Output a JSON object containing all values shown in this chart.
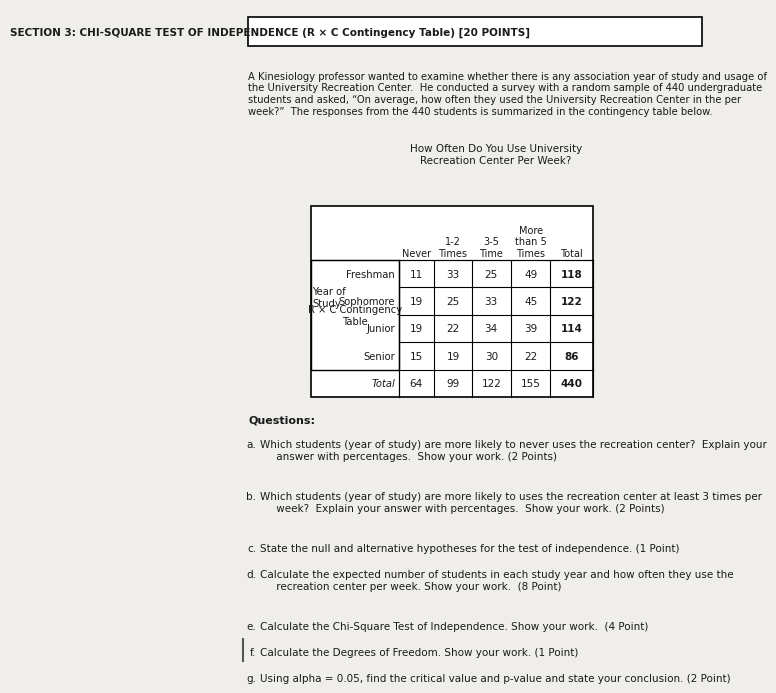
{
  "title": "SECTION 3: CHI-SQUARE TEST OF INDEPENDENCE (R × C Contingency Table) [20 POINTS]",
  "intro_text": "A Kinesiology professor wanted to examine whether there is any association year of study and usage of\nthe University Recreation Center.  He conducted a survey with a random sample of 440 undergraduate\nstudents and asked, “On average, how often they used the University Recreation Center in the per\nweek?”  The responses from the 440 students is summarized in the contingency table below.",
  "table_header_top": "How Often Do You Use University\nRecreation Center Per Week?",
  "table_col_label": "R × C Contingency\nTable",
  "col_headers": [
    "Never",
    "1-2\nTimes",
    "3-5\nTime",
    "More\nthan 5\nTimes",
    "Total"
  ],
  "row_label_group": "Year of\nStudy",
  "row_labels": [
    "Freshman",
    "Sophomore",
    "Junior",
    "Senior",
    "Total"
  ],
  "data": [
    [
      11,
      33,
      25,
      49,
      118
    ],
    [
      19,
      25,
      33,
      45,
      122
    ],
    [
      19,
      22,
      34,
      39,
      114
    ],
    [
      15,
      19,
      30,
      22,
      86
    ],
    [
      64,
      99,
      122,
      155,
      440
    ]
  ],
  "questions_label": "Questions:",
  "questions": [
    [
      "a.",
      "Which students (year of study) are more likely to never uses the recreation center?  Explain your\n     answer with percentages.  Show your work. (2 Points)",
      "never"
    ],
    [
      "b.",
      "Which students (year of study) are more likely to uses the recreation center at least 3 times per\n     week?  Explain your answer with percentages.  Show your work. (2 Points)",
      "at least 3 times per"
    ],
    [
      "c.",
      "State the null and alternative hypotheses for the test of independence. (1 Point)",
      ""
    ],
    [
      "d.",
      "Calculate the expected number of students in each study year and how often they use the\n     recreation center per week. Show your work.  (8 Point)",
      ""
    ],
    [
      "e.",
      "Calculate the Chi-Square Test of Independence. Show your work.  (4 Point)",
      ""
    ],
    [
      "f.",
      "Calculate the Degrees of Freedom. Show your work. (1 Point)",
      ""
    ],
    [
      "g.",
      "Using alpha = 0.05, find the critical value and p-value and state your conclusion. (2 Point)",
      ""
    ]
  ],
  "bg_color": "#f0eeeb",
  "border_color": "#000000",
  "text_color": "#1a1a1a"
}
